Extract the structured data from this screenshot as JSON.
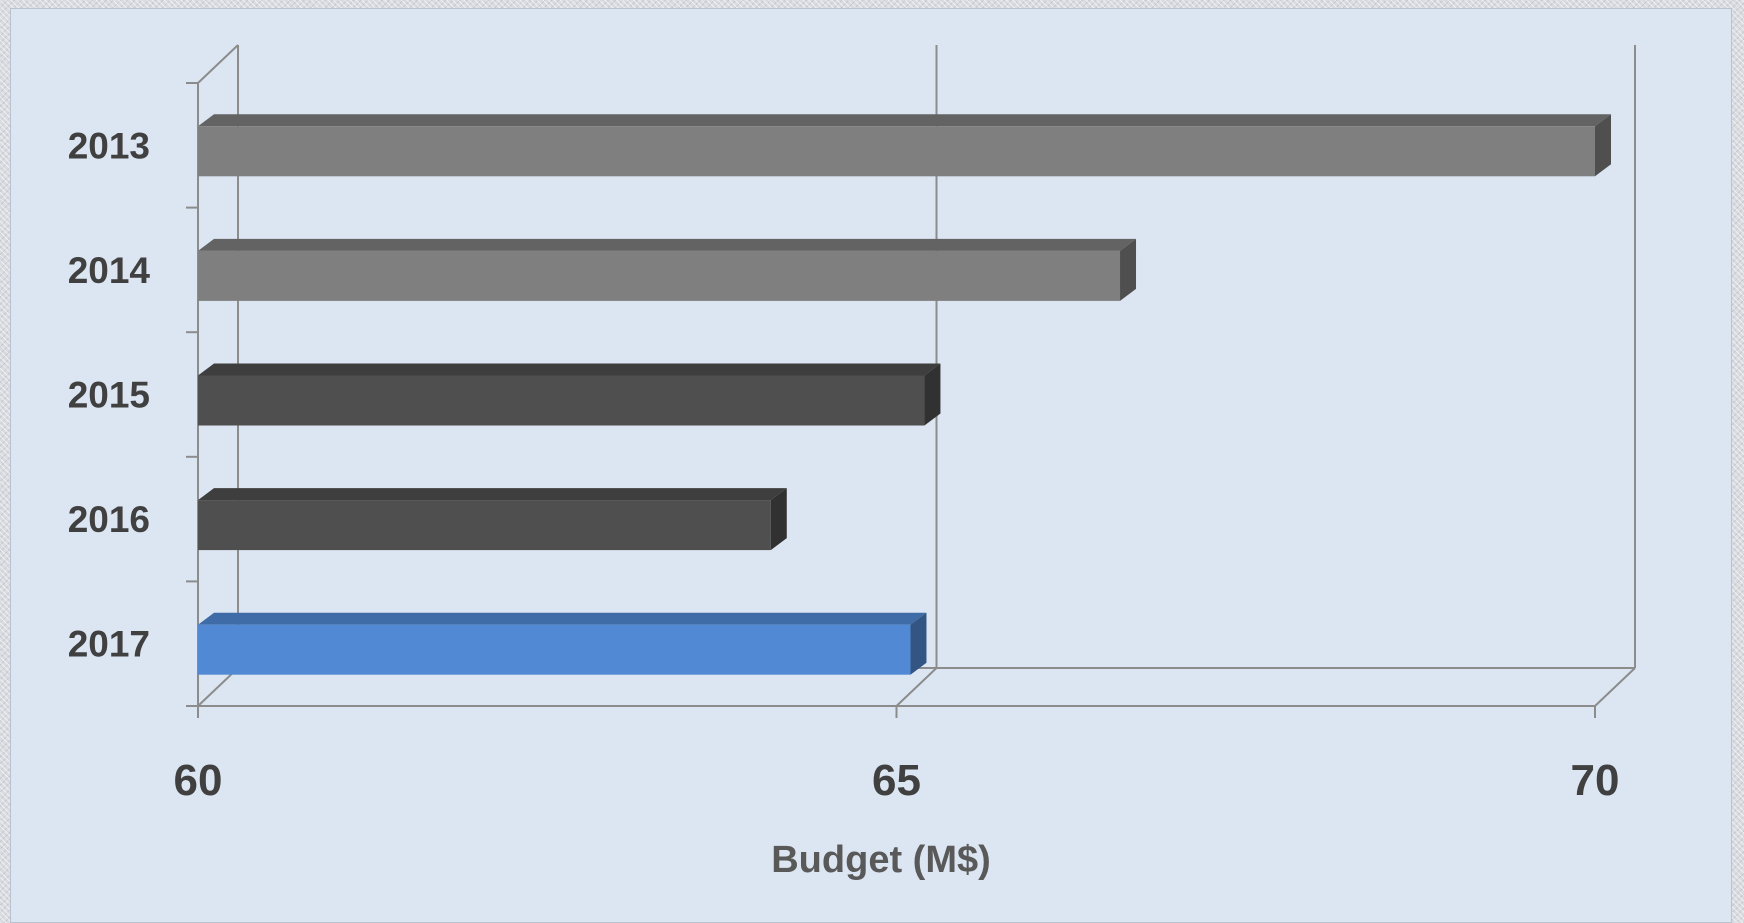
{
  "chart_data": {
    "type": "bar",
    "orientation": "horizontal",
    "style": "3d",
    "categories": [
      "2013",
      "2014",
      "2015",
      "2016",
      "2017"
    ],
    "values": [
      70.0,
      66.6,
      65.2,
      64.1,
      65.1
    ],
    "bar_colors": [
      "#7f7f7f",
      "#7f7f7f",
      "#4f4f4f",
      "#4f4f4f",
      "#5189d5"
    ],
    "xlim": [
      60,
      70
    ],
    "xticks": [
      "60",
      "65",
      "70"
    ],
    "xlabel": "Budget (M$)",
    "ylabel": "",
    "title": "",
    "grid": true,
    "background": "#dce6f2"
  }
}
